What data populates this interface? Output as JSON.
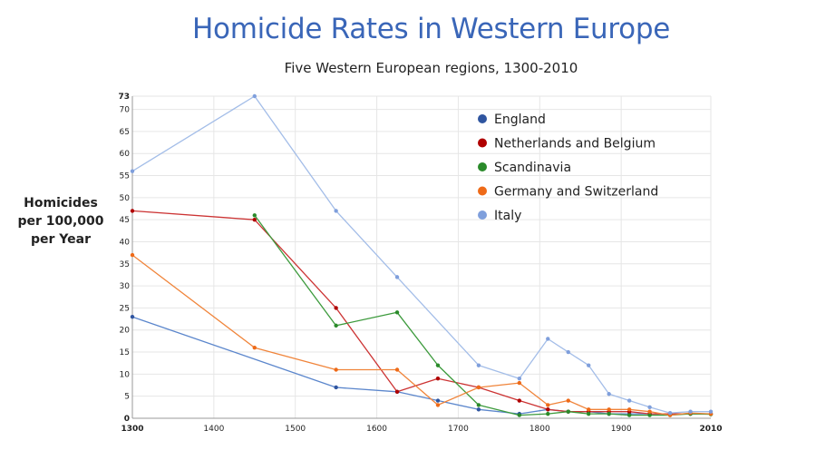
{
  "chart_data": {
    "type": "line",
    "title": "Homicide Rates in Western Europe",
    "subtitle": "Five Western European regions, 1300-2010",
    "ylabel": [
      "Homicides",
      "per 100,000",
      "per Year"
    ],
    "xlabel": "",
    "xlim": [
      1300,
      2010
    ],
    "ylim": [
      0,
      73
    ],
    "x_ticks": [
      "1300",
      "1400",
      "1500",
      "1600",
      "1700",
      "1800",
      "1900",
      "2010"
    ],
    "x_tick_values": [
      1300,
      1400,
      1500,
      1600,
      1700,
      1800,
      1900,
      2010
    ],
    "y_ticks": [
      "0",
      "5",
      "10",
      "15",
      "20",
      "25",
      "30",
      "35",
      "40",
      "45",
      "50",
      "55",
      "60",
      "65",
      "70",
      "73"
    ],
    "y_tick_values": [
      0,
      5,
      10,
      15,
      20,
      25,
      30,
      35,
      40,
      45,
      50,
      55,
      60,
      65,
      70,
      73
    ],
    "grid": true,
    "legend_position": "top-right",
    "series": [
      {
        "name": "England",
        "color": "#5b86cc",
        "marker": "#2f55a0",
        "points": [
          [
            1300,
            23
          ],
          [
            1550,
            7
          ],
          [
            1625,
            6
          ],
          [
            1675,
            4
          ],
          [
            1725,
            2
          ],
          [
            1775,
            1
          ],
          [
            1810,
            2
          ],
          [
            1835,
            1.5
          ],
          [
            1860,
            1.5
          ],
          [
            1885,
            1
          ],
          [
            1910,
            1
          ],
          [
            1935,
            1
          ],
          [
            1960,
            1
          ],
          [
            1985,
            1
          ],
          [
            2010,
            1
          ]
        ]
      },
      {
        "name": "Netherlands and Belgium",
        "color": "#cc3333",
        "marker": "#b00000",
        "points": [
          [
            1300,
            47
          ],
          [
            1450,
            45
          ],
          [
            1550,
            25
          ],
          [
            1625,
            6
          ],
          [
            1675,
            9
          ],
          [
            1725,
            7
          ],
          [
            1775,
            4
          ],
          [
            1810,
            2
          ],
          [
            1835,
            1.5
          ],
          [
            1860,
            1.5
          ],
          [
            1885,
            1.5
          ],
          [
            1910,
            1.5
          ],
          [
            1935,
            1
          ],
          [
            1960,
            1
          ],
          [
            1985,
            1
          ],
          [
            2010,
            1
          ]
        ]
      },
      {
        "name": "Scandinavia",
        "color": "#3c9a3c",
        "marker": "#2a8a2a",
        "points": [
          [
            1450,
            46
          ],
          [
            1550,
            21
          ],
          [
            1625,
            24
          ],
          [
            1675,
            12
          ],
          [
            1725,
            3
          ],
          [
            1775,
            0.7
          ],
          [
            1810,
            1
          ],
          [
            1835,
            1.5
          ],
          [
            1860,
            1
          ],
          [
            1885,
            1
          ],
          [
            1910,
            0.7
          ],
          [
            1935,
            0.7
          ],
          [
            1960,
            0.7
          ],
          [
            1985,
            1
          ],
          [
            2010,
            0.9
          ]
        ]
      },
      {
        "name": "Germany and Switzerland",
        "color": "#f0843a",
        "marker": "#ee6a18",
        "points": [
          [
            1300,
            37
          ],
          [
            1450,
            16
          ],
          [
            1550,
            11
          ],
          [
            1625,
            11
          ],
          [
            1675,
            3
          ],
          [
            1725,
            7
          ],
          [
            1775,
            8
          ],
          [
            1810,
            3
          ],
          [
            1835,
            4
          ],
          [
            1860,
            2
          ],
          [
            1885,
            2
          ],
          [
            1910,
            2
          ],
          [
            1935,
            1.5
          ],
          [
            1960,
            0.7
          ],
          [
            1985,
            1.2
          ],
          [
            2010,
            1
          ]
        ]
      },
      {
        "name": "Italy",
        "color": "#a3bde8",
        "marker": "#7f9fdc",
        "points": [
          [
            1300,
            56
          ],
          [
            1450,
            73
          ],
          [
            1550,
            47
          ],
          [
            1625,
            32
          ],
          [
            1725,
            12
          ],
          [
            1775,
            9
          ],
          [
            1810,
            18
          ],
          [
            1835,
            15
          ],
          [
            1860,
            12
          ],
          [
            1885,
            5.5
          ],
          [
            1910,
            4
          ],
          [
            1935,
            2.5
          ],
          [
            1960,
            1.2
          ],
          [
            1985,
            1.5
          ],
          [
            2010,
            1.5
          ]
        ]
      }
    ]
  }
}
